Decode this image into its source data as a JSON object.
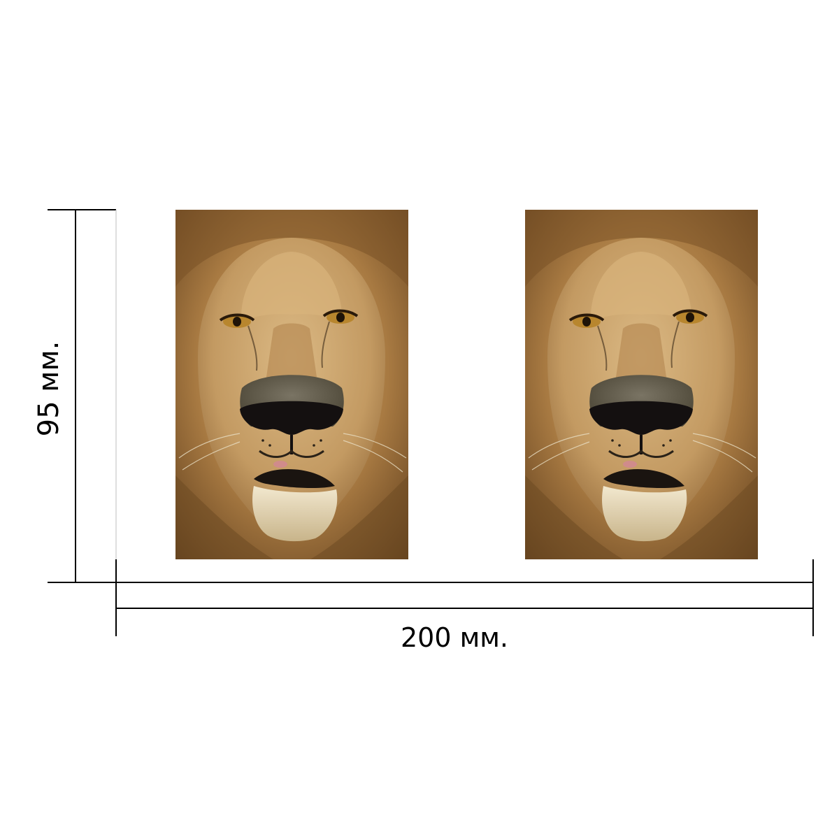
{
  "dimensions": {
    "height_label": "95 мм.",
    "width_label": "200 мм."
  },
  "panels": [
    {
      "subject": "lion-face-photo"
    },
    {
      "subject": "lion-face-photo"
    }
  ],
  "colors": {
    "mane_dark": "#6e4a22",
    "mane_mid": "#a87a42",
    "mane_light": "#c9a466",
    "face": "#c9a16a",
    "nose": "#3a3228",
    "line": "#000000"
  }
}
